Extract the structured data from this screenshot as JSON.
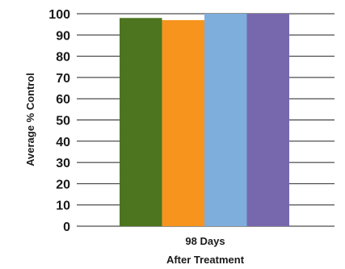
{
  "chart_data": {
    "type": "bar",
    "categories": [
      "98 Days After Treatment"
    ],
    "category_label_lines": [
      "98 Days",
      "After Treatment"
    ],
    "series": [
      {
        "values": [
          98
        ],
        "color": "#4d7520"
      },
      {
        "values": [
          97
        ],
        "color": "#f7941d"
      },
      {
        "values": [
          100
        ],
        "color": "#7eaedc"
      },
      {
        "values": [
          100
        ],
        "color": "#7768ae"
      }
    ],
    "title": "",
    "xlabel": "",
    "ylabel": "Average % Control",
    "ylim": [
      0,
      100
    ],
    "yticks": [
      0,
      10,
      20,
      30,
      40,
      50,
      60,
      70,
      80,
      90,
      100
    ],
    "grid": true,
    "legend": "none"
  }
}
